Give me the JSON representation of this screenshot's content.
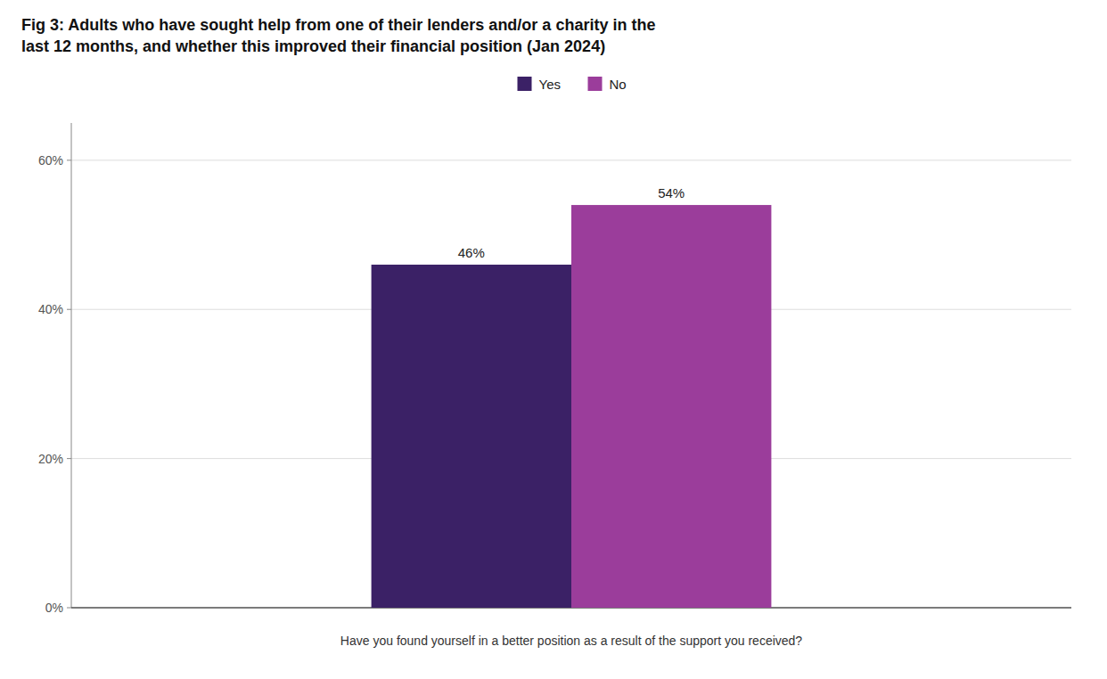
{
  "chart_data": {
    "type": "bar",
    "title": "Fig 3: Adults who have sought help from one of their lenders and/or a charity in the\nlast 12 months, and whether this improved their financial position (Jan 2024)",
    "xlabel": "Have you found yourself in a better position as a result of the support you received?",
    "categories": [
      "Yes",
      "No"
    ],
    "values": [
      46,
      54
    ],
    "value_labels": [
      "46%",
      "54%"
    ],
    "colors": [
      "#3b2166",
      "#9b3d9b"
    ],
    "ylim": [
      0,
      65
    ],
    "yticks": [
      {
        "value": 0,
        "label": "0%"
      },
      {
        "value": 20,
        "label": "20%"
      },
      {
        "value": 40,
        "label": "40%"
      },
      {
        "value": 60,
        "label": "60%"
      }
    ],
    "grid": true,
    "legend": "top",
    "data_labels": true,
    "tick_labels": "y"
  }
}
